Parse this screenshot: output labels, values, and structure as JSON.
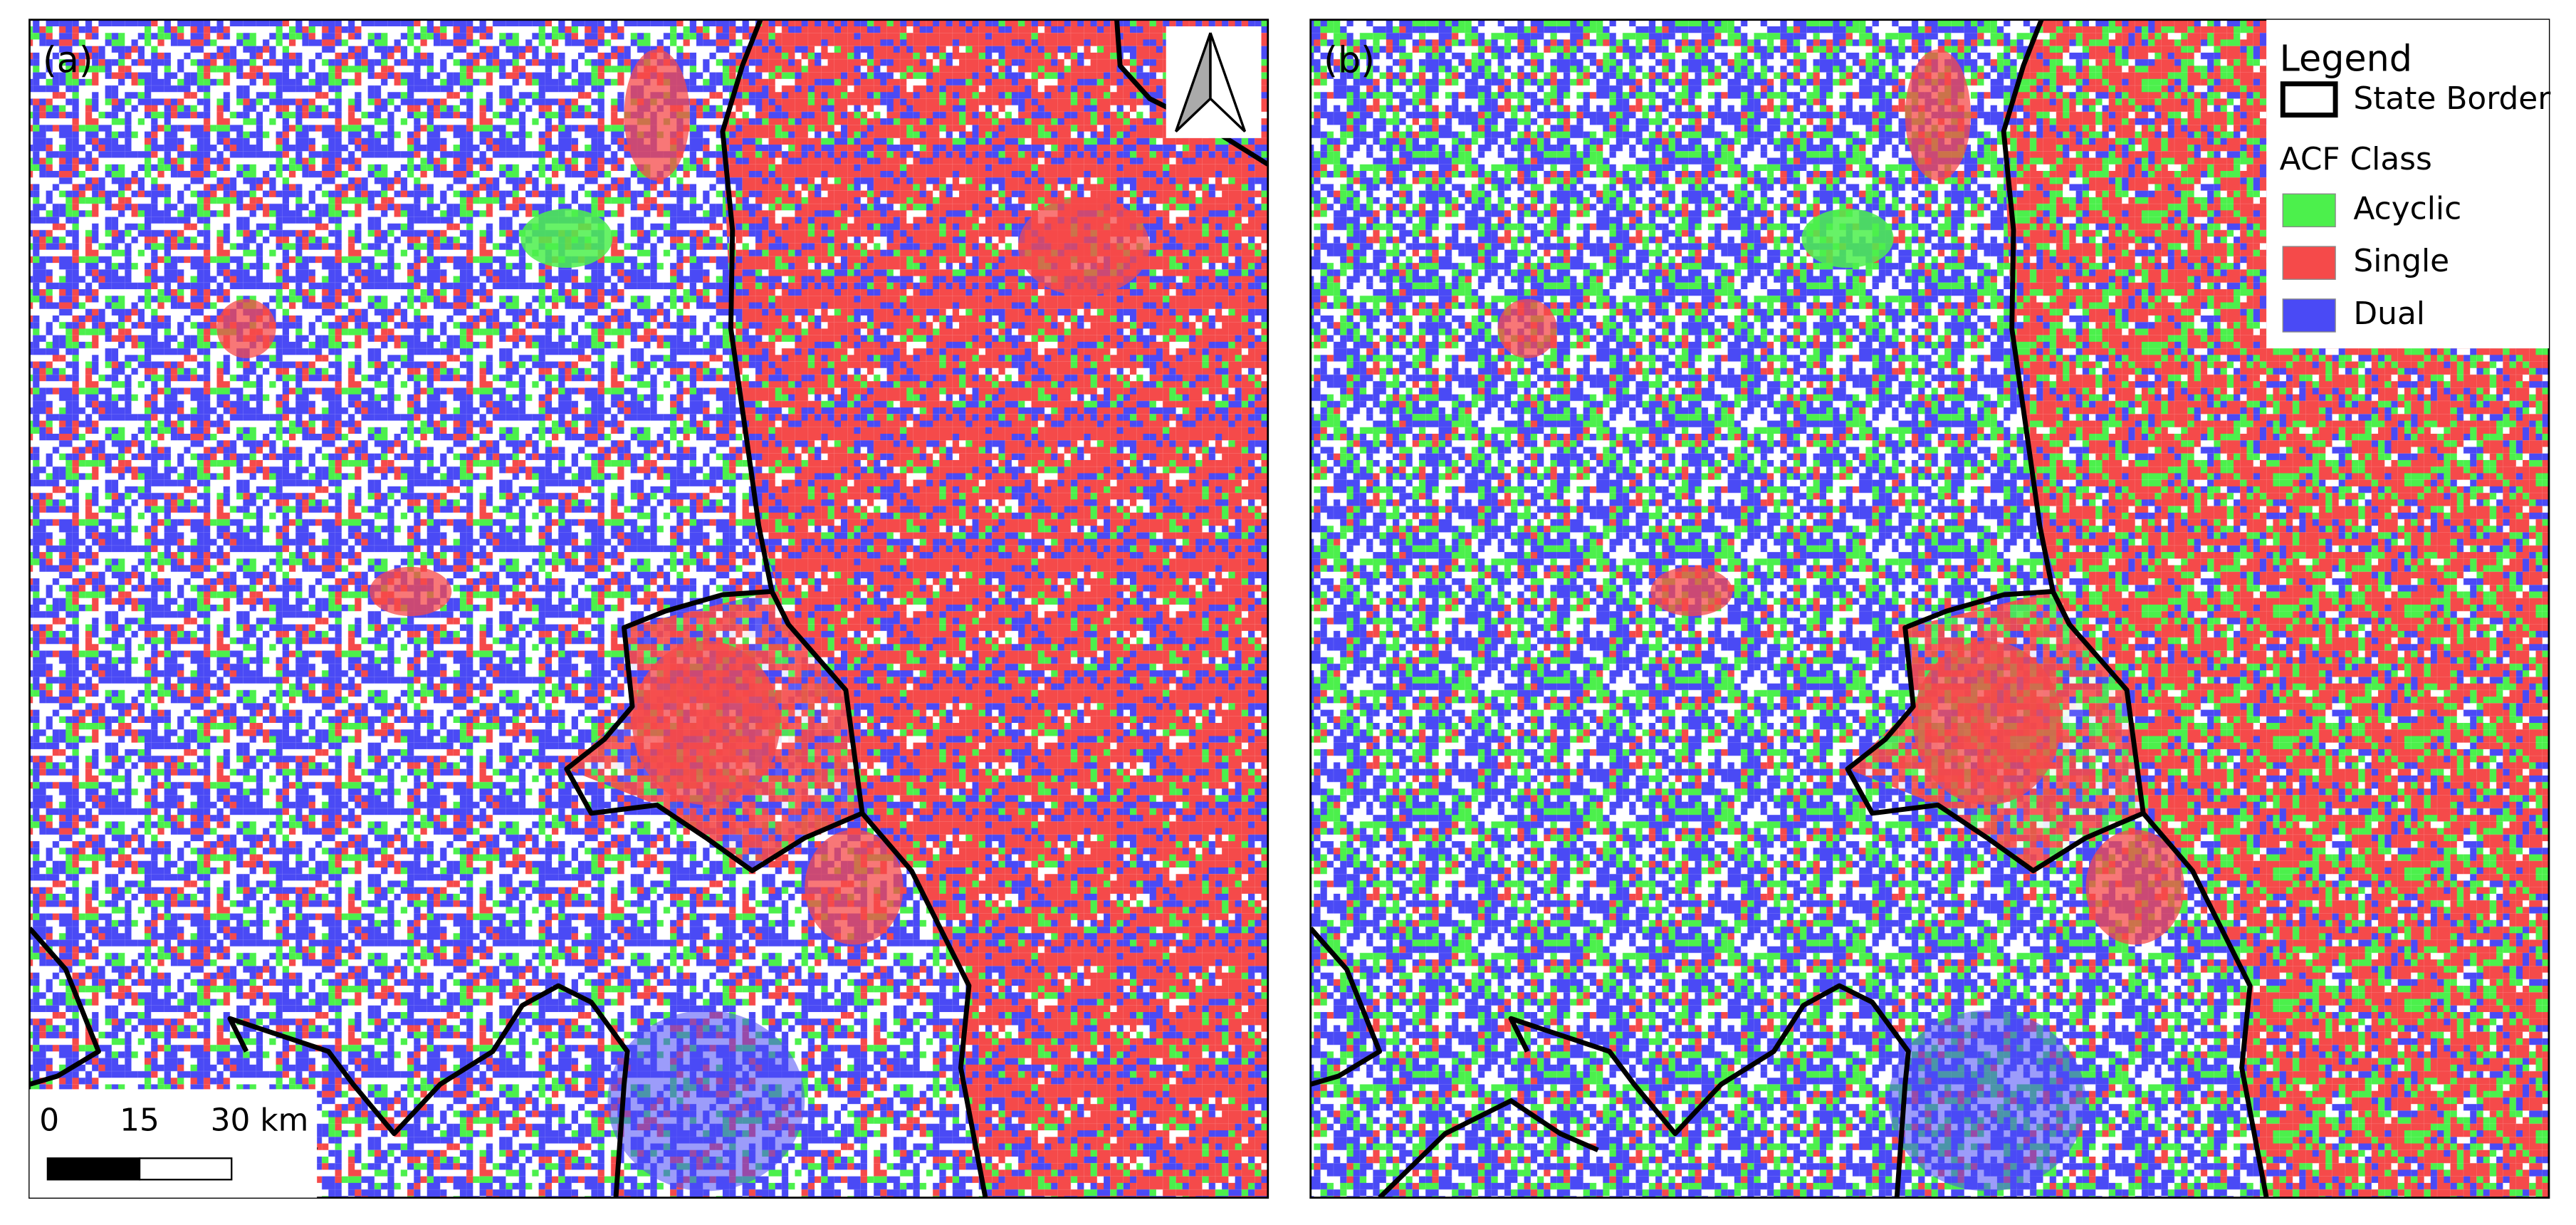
{
  "panels": [
    {
      "label": "(a)"
    },
    {
      "label": "(b)"
    }
  ],
  "legend": {
    "title": "Legend",
    "border_label": "State Border",
    "class_title": "ACF Class",
    "classes": [
      {
        "name": "Acyclic",
        "color": "#4cf04c"
      },
      {
        "name": "Single",
        "color": "#f54a4a"
      },
      {
        "name": "Dual",
        "color": "#4a4af5"
      }
    ]
  },
  "scale_bar": {
    "labels": [
      "0",
      "15",
      "30 km"
    ]
  }
}
